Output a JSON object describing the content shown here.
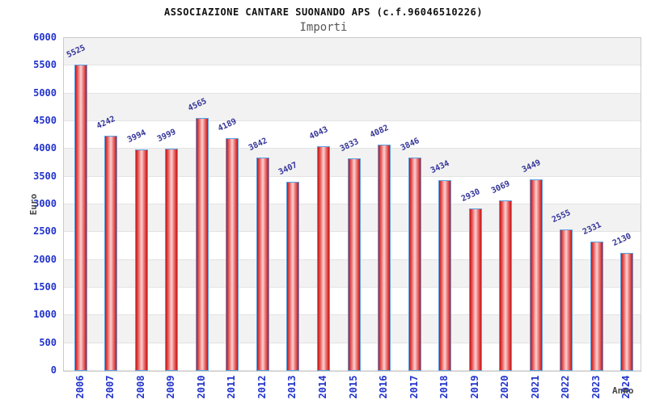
{
  "header": {
    "title": "ASSOCIAZIONE CANTARE SUONANDO APS (c.f.96046510226)",
    "subtitle": "Importi"
  },
  "chart_data": {
    "type": "bar",
    "title": "ASSOCIAZIONE CANTARE SUONANDO APS (c.f.96046510226)",
    "subtitle": "Importi",
    "xlabel": "Anno",
    "ylabel": "Euro",
    "categories": [
      "2006",
      "2007",
      "2008",
      "2009",
      "2010",
      "2011",
      "2012",
      "2013",
      "2014",
      "2015",
      "2016",
      "2017",
      "2018",
      "2019",
      "2020",
      "2021",
      "2022",
      "2023",
      "2024"
    ],
    "values": [
      5525,
      4242,
      3994,
      3999,
      4565,
      4189,
      3842,
      3407,
      4043,
      3833,
      4082,
      3846,
      3434,
      2930,
      3069,
      3449,
      2555,
      2331,
      2130
    ],
    "ylim": [
      0,
      6000
    ],
    "ytick_step": 500,
    "legend": "none",
    "grid": "horizontal-bands",
    "colors": {
      "band_dark": "#f2f2f2",
      "band_light": "#ffffff",
      "gridline": "#e3e3e3",
      "plot_border": "#cccccc",
      "bar_border": "#5b9fe0",
      "bar_gradient": [
        "#c41414",
        "#e96a6a",
        "#fdd2d2",
        "#e96a6a",
        "#c41414"
      ],
      "tick_label": "#2233cc",
      "value_label": "#333399",
      "axis_label": "#444444",
      "title": "#111111",
      "subtitle": "#565656"
    }
  }
}
